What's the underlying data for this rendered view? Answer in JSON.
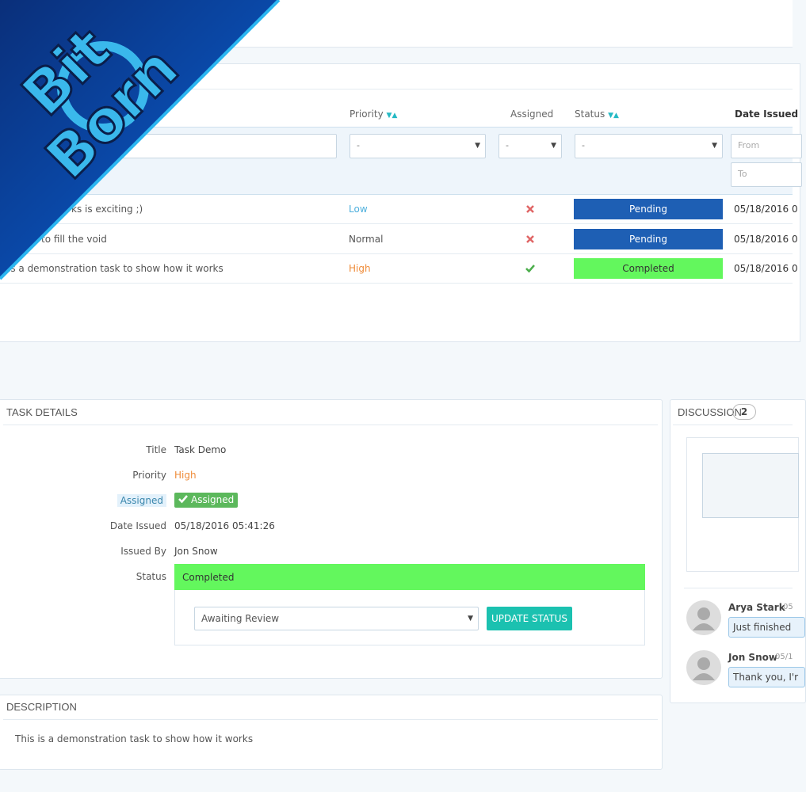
{
  "logo": {
    "line1": "Bit",
    "line2": "Born"
  },
  "table": {
    "headers": [
      "Priority",
      "Assigned",
      "Status",
      "Date Issued"
    ],
    "filters": {
      "priority": "-",
      "assigned": "-",
      "status": "-",
      "from": "From",
      "to": "To"
    },
    "rows": [
      [
        "ks is exciting ;)",
        "Low",
        "Pending",
        "05/18/2016 0"
      ],
      [
        "to fill the void",
        "Normal",
        "Pending",
        "05/18/2016 0"
      ],
      [
        "is a demonstration task to show how it works",
        "High",
        "Completed",
        "05/18/2016 0"
      ]
    ]
  },
  "task_details": {
    "title": "TASK DETAILS",
    "fields": [
      {
        "label": "Title",
        "value": "Task Demo"
      },
      {
        "label": "Priority",
        "value": "High"
      },
      {
        "label": "Assigned",
        "value": "Assigned"
      },
      {
        "label": "Date Issued",
        "value": "05/18/2016 05:41:26"
      },
      {
        "label": "Issued By",
        "value": "Jon Snow"
      },
      {
        "label": "Status",
        "value": "Completed"
      }
    ],
    "status_select": "Awaiting Review",
    "button": "UPDATE STATUS"
  },
  "description": {
    "title": "DESCRIPTION",
    "text": "This is a demonstration task to show how it works"
  },
  "discussion": {
    "title": "DISCUSSION",
    "count": "2",
    "comments": [
      {
        "author": "Arya Stark",
        "time": "05",
        "text": "Just finished"
      },
      {
        "author": "Jon Snow",
        "time": "05/1",
        "text": "Thank you, I'r"
      }
    ]
  }
}
